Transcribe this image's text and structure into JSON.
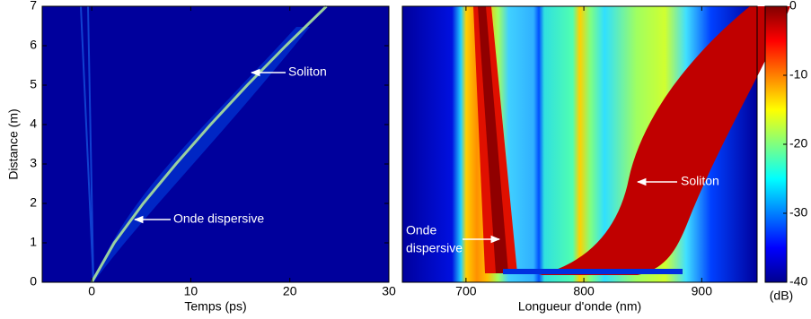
{
  "chart_data": [
    {
      "type": "heatmap",
      "xlabel": "Temps (ps)",
      "ylabel": "Distance (m)",
      "xlim": [
        -5,
        30
      ],
      "ylim": [
        0,
        7
      ],
      "xticks": [
        0,
        10,
        20,
        30
      ],
      "yticks": [
        0,
        1,
        2,
        3,
        4,
        5,
        6,
        7
      ],
      "trace": {
        "color": "#9ad0a0",
        "x": [
          0,
          2.27,
          5.2,
          8.5,
          12.0,
          15.7,
          19.6,
          23.7
        ],
        "values": [
          0,
          1,
          2,
          3,
          4,
          5,
          6,
          7
        ]
      },
      "annotations": [
        "Soliton",
        "Onde dispersive"
      ]
    },
    {
      "type": "heatmap",
      "xlabel": "Longueur d'onde (nm)",
      "xlim": [
        646,
        947
      ],
      "ylim": [
        0,
        7
      ],
      "xticks": [
        700,
        800,
        900
      ],
      "annotations": [
        "Soliton",
        [
          "Onde",
          "dispersive"
        ]
      ]
    },
    {
      "type": "colorbar",
      "label": "(dB)",
      "ylim": [
        -40,
        0
      ],
      "yticks": [
        0,
        -10,
        -20,
        -30,
        -40
      ]
    }
  ]
}
